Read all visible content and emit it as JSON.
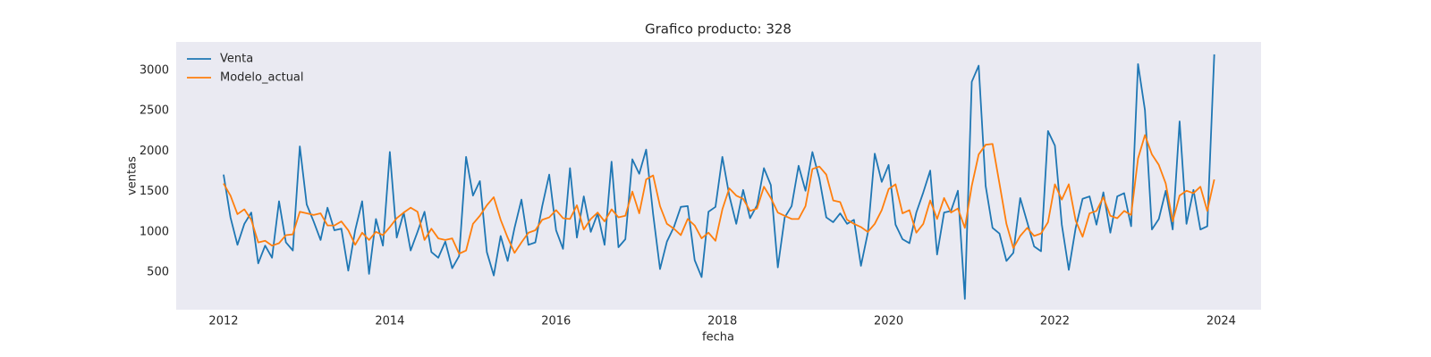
{
  "chart_data": {
    "type": "line",
    "title": "Grafico producto: 328",
    "x_label": "fecha",
    "y_label": "ventas",
    "x": [
      2012,
      2012.083,
      2012.167,
      2012.25,
      2012.333,
      2012.417,
      2012.5,
      2012.583,
      2012.667,
      2012.75,
      2012.833,
      2012.917,
      2013,
      2013.083,
      2013.167,
      2013.25,
      2013.333,
      2013.417,
      2013.5,
      2013.583,
      2013.667,
      2013.75,
      2013.833,
      2013.917,
      2014,
      2014.083,
      2014.167,
      2014.25,
      2014.333,
      2014.417,
      2014.5,
      2014.583,
      2014.667,
      2014.75,
      2014.833,
      2014.917,
      2015,
      2015.083,
      2015.167,
      2015.25,
      2015.333,
      2015.417,
      2015.5,
      2015.583,
      2015.667,
      2015.75,
      2015.833,
      2015.917,
      2016,
      2016.083,
      2016.167,
      2016.25,
      2016.333,
      2016.417,
      2016.5,
      2016.583,
      2016.667,
      2016.75,
      2016.833,
      2016.917,
      2017,
      2017.083,
      2017.167,
      2017.25,
      2017.333,
      2017.417,
      2017.5,
      2017.583,
      2017.667,
      2017.75,
      2017.833,
      2017.917,
      2018,
      2018.083,
      2018.167,
      2018.25,
      2018.333,
      2018.417,
      2018.5,
      2018.583,
      2018.667,
      2018.75,
      2018.833,
      2018.917,
      2019,
      2019.083,
      2019.167,
      2019.25,
      2019.333,
      2019.417,
      2019.5,
      2019.583,
      2019.667,
      2019.75,
      2019.833,
      2019.917,
      2020,
      2020.083,
      2020.167,
      2020.25,
      2020.333,
      2020.417,
      2020.5,
      2020.583,
      2020.667,
      2020.75,
      2020.833,
      2020.917,
      2021,
      2021.083,
      2021.167,
      2021.25,
      2021.333,
      2021.417,
      2021.5,
      2021.583,
      2021.667,
      2021.75,
      2021.833,
      2021.917,
      2022,
      2022.083,
      2022.167,
      2022.25,
      2022.333,
      2022.417,
      2022.5,
      2022.583,
      2022.667,
      2022.75,
      2022.833,
      2022.917,
      2023,
      2023.083,
      2023.167,
      2023.25,
      2023.333,
      2023.417,
      2023.5,
      2023.583,
      2023.667,
      2023.75,
      2023.833,
      2023.917
    ],
    "series": [
      {
        "name": "Venta",
        "color": "#1f77b4",
        "values": [
          1710,
          1180,
          840,
          1100,
          1240,
          610,
          830,
          680,
          1380,
          870,
          770,
          2060,
          1340,
          1130,
          900,
          1300,
          1020,
          1040,
          520,
          1020,
          1380,
          480,
          1160,
          830,
          1990,
          930,
          1240,
          770,
          1000,
          1250,
          750,
          680,
          880,
          550,
          700,
          1930,
          1450,
          1630,
          750,
          460,
          950,
          640,
          1050,
          1400,
          840,
          870,
          1320,
          1710,
          1020,
          790,
          1790,
          930,
          1440,
          1000,
          1230,
          840,
          1870,
          810,
          910,
          1900,
          1720,
          2020,
          1220,
          540,
          880,
          1060,
          1310,
          1320,
          650,
          440,
          1250,
          1310,
          1930,
          1450,
          1100,
          1520,
          1170,
          1330,
          1790,
          1580,
          560,
          1180,
          1320,
          1820,
          1510,
          1990,
          1660,
          1180,
          1120,
          1230,
          1100,
          1150,
          580,
          990,
          1970,
          1620,
          1830,
          1090,
          910,
          860,
          1240,
          1490,
          1760,
          720,
          1240,
          1260,
          1510,
          170,
          2860,
          3060,
          1570,
          1050,
          980,
          640,
          740,
          1420,
          1120,
          820,
          760,
          2250,
          2070,
          1090,
          530,
          1050,
          1410,
          1440,
          1090,
          1490,
          990,
          1440,
          1480,
          1070,
          3080,
          2510,
          1030,
          1160,
          1510,
          1030,
          2370,
          1100,
          1520,
          1030,
          1070,
          3200
        ]
      },
      {
        "name": "Modelo_actual",
        "color": "#ff7f0e",
        "values": [
          1600,
          1450,
          1220,
          1280,
          1150,
          870,
          890,
          830,
          860,
          960,
          970,
          1250,
          1230,
          1210,
          1230,
          1080,
          1080,
          1130,
          1020,
          840,
          990,
          900,
          1000,
          960,
          1060,
          1170,
          1240,
          1300,
          1250,
          900,
          1040,
          920,
          900,
          920,
          730,
          770,
          1100,
          1200,
          1330,
          1430,
          1150,
          930,
          740,
          870,
          990,
          1020,
          1150,
          1180,
          1270,
          1170,
          1160,
          1330,
          1030,
          1160,
          1240,
          1130,
          1280,
          1180,
          1200,
          1500,
          1230,
          1650,
          1700,
          1320,
          1100,
          1040,
          960,
          1160,
          1080,
          920,
          990,
          890,
          1280,
          1540,
          1450,
          1410,
          1260,
          1290,
          1560,
          1420,
          1240,
          1200,
          1160,
          1160,
          1320,
          1780,
          1810,
          1710,
          1390,
          1370,
          1150,
          1100,
          1060,
          1000,
          1100,
          1270,
          1530,
          1590,
          1230,
          1270,
          990,
          1100,
          1390,
          1160,
          1420,
          1240,
          1290,
          1050,
          1570,
          1960,
          2080,
          2090,
          1600,
          1100,
          800,
          950,
          1050,
          950,
          980,
          1120,
          1590,
          1400,
          1590,
          1140,
          940,
          1230,
          1260,
          1430,
          1200,
          1170,
          1260,
          1210,
          1910,
          2200,
          1960,
          1830,
          1600,
          1130,
          1450,
          1510,
          1480,
          1560,
          1260,
          1650
        ]
      }
    ],
    "xlim": [
      2011.43,
      2024.48
    ],
    "xticks": [
      2012,
      2014,
      2016,
      2018,
      2020,
      2022,
      2024
    ],
    "ylim": [
      36,
      3354
    ],
    "yticks": [
      500,
      1000,
      1500,
      2000,
      2500,
      3000
    ],
    "grid": false,
    "legend": "upper left",
    "background": "#eaeaf2"
  }
}
